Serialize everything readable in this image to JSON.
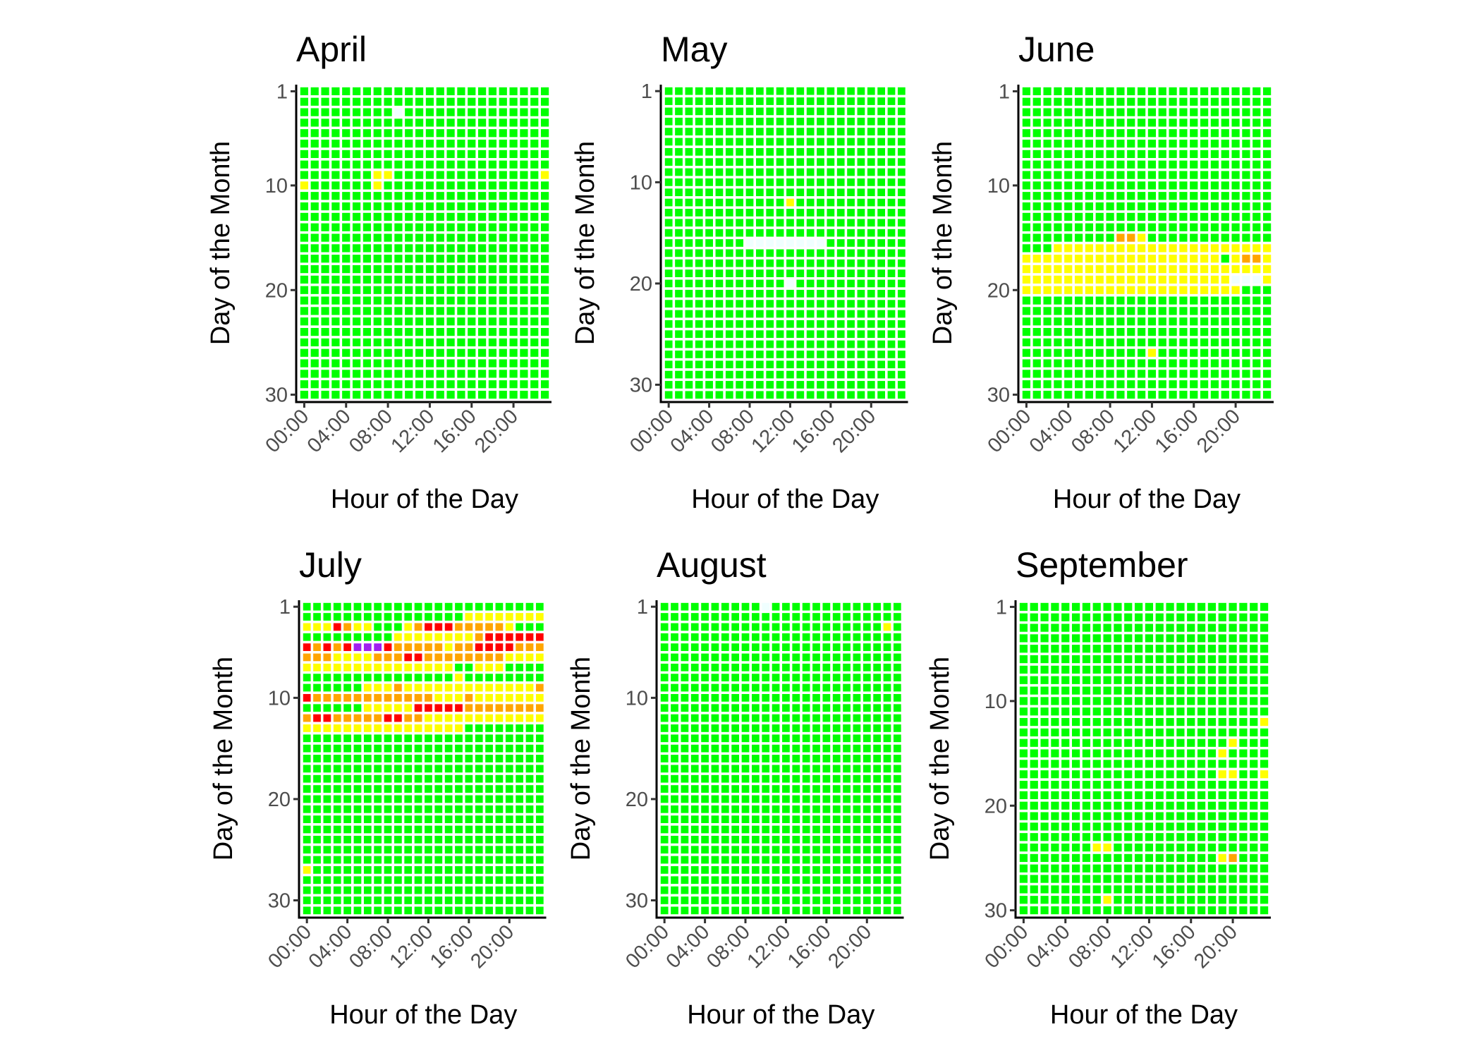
{
  "chart_data": [
    {
      "type": "heatmap",
      "title": "April",
      "days": 30,
      "rows": {
        "3": "GGGGGGGGGNGGGGGGGGGGGGGG",
        "9": "GGGGGGGYYGGGGGGGGGGGGGGY",
        "10": "YGGGGGGYGGGGGGGGGGGGGGGG"
      }
    },
    {
      "type": "heatmap",
      "title": "May",
      "days": 31,
      "rows": {
        "12": "GGGGGGGGGGGGYGGGGGGGGGGG",
        "16": "GGGGGGGGNNNNNNNNGGGGGGGG",
        "20": "GGGGGGGGGGGGNGGGGGGGGGGG"
      }
    },
    {
      "type": "heatmap",
      "title": "June",
      "days": 30,
      "rows": {
        "15": "GGGGGGGGGOOYGGGGGGGGGGGG",
        "16": "GGGYYYYYYYYYYYYYYYYYYYYY",
        "17": "YYYYYYYYYYYYYYYYYYYGYOOY",
        "18": "YYYYYYYYYYYYYYYYYYYYYYYY",
        "19": "YYYYYYYYYYYYYYYYYYYYNNNY",
        "20": "YYYYYYYYYYYYYYYYYYYYYGGG",
        "26": "GGGGGGGGGGGGYGGGGGGGGGGG"
      }
    },
    {
      "type": "heatmap",
      "title": "July",
      "days": 31,
      "rows": {
        "2": "GGGGGGGGGGGGGGGGYYYYYYYY",
        "3": "YYYROYYGGGYORRROOOOOYGGG",
        "4": "GGGGGGGGGYYYYYYYYORRRRRR",
        "5": "RORORPPPROOOOOYOORRRROOO",
        "6": "OOOYYYYOOORROOOOOOOOYYYY",
        "7": "YYYYYYYYYYYYYYYGGYYYGGGG",
        "8": "GGGGGGGGGGGGGGGYGGGGGGGG",
        "9": "GGGGGGYYYOYYYYYYYYYYYYYO",
        "10": "ROOOOOOOOOOOOYYYOYYYYYYY",
        "11": "GGGGGGYYYYYRRRRROOOOOOOO",
        "12": "ORROOOOORROOYYYYYYYYYYYY",
        "13": "YYYYYYYYYYYYYYYYGGGGGGGG",
        "27": "YGGGGGGGGGGGGGGGGGGGGGGG"
      }
    },
    {
      "type": "heatmap",
      "title": "August",
      "days": 31,
      "rows": {
        "1": "GGGGGGGGGGNGGGGGGGGGGGGG",
        "3": "GGGGGGGGGGGGGGGGGGGGGGYG"
      }
    },
    {
      "type": "heatmap",
      "title": "September",
      "days": 30,
      "rows": {
        "12": "GGGGGGGGGGGGGGGGGGGGGGGY",
        "14": "GGGGGGGGGGGGGGGGGGGGYGGG",
        "15": "GGGGGGGGGGGGGGGGGGGYGGGG",
        "17": "GGGGGGGGGGGGGGGGGGGYYGGY",
        "24": "GGGGGGGYYGGGGGGGGGGGGGGG",
        "25": "GGGGGGGGGGGGGGGGGGGYOGGG",
        "29": "GGGGGGGGYGGGGGGGGGGGGGGG"
      }
    }
  ],
  "shared": {
    "xlabel": "Hour of the Day",
    "ylabel": "Day of the Month",
    "x_ticks": [
      {
        "hour": 0,
        "label": "00:00"
      },
      {
        "hour": 4,
        "label": "04:00"
      },
      {
        "hour": 8,
        "label": "08:00"
      },
      {
        "hour": 12,
        "label": "12:00"
      },
      {
        "hour": 16,
        "label": "16:00"
      },
      {
        "hour": 20,
        "label": "20:00"
      }
    ],
    "y_ticks": [
      1,
      10,
      20,
      30
    ],
    "hours": 24,
    "default_code": "G",
    "colors": {
      "G": "#00ff00",
      "Y": "#ffff00",
      "O": "#ffa500",
      "R": "#ff0000",
      "P": "#a020f0",
      "N": "#f0ffff"
    },
    "grid": false,
    "legend": "none"
  }
}
